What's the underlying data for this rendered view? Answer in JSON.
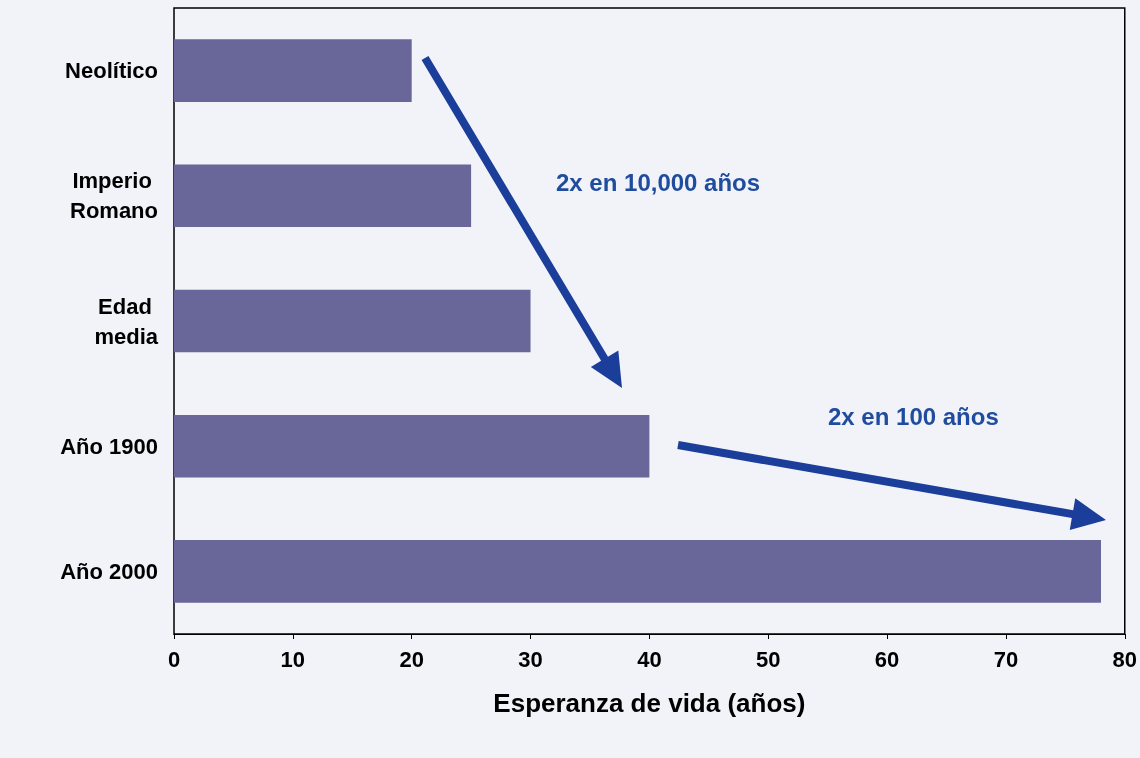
{
  "chart_data": {
    "type": "bar",
    "orientation": "horizontal",
    "categories": [
      "Neolítico",
      "Imperio Romano",
      "Edad media",
      "Año 1900",
      "Año 2000"
    ],
    "values": [
      20,
      25,
      30,
      40,
      78
    ],
    "color": "#69679a",
    "xlabel": "Esperanza de vida (años)",
    "xlim": [
      0,
      80
    ],
    "xticks": [
      0,
      10,
      20,
      30,
      40,
      50,
      60,
      70,
      80
    ],
    "annotations": [
      "2x en 10,000 años",
      "2x en 100 años"
    ]
  }
}
